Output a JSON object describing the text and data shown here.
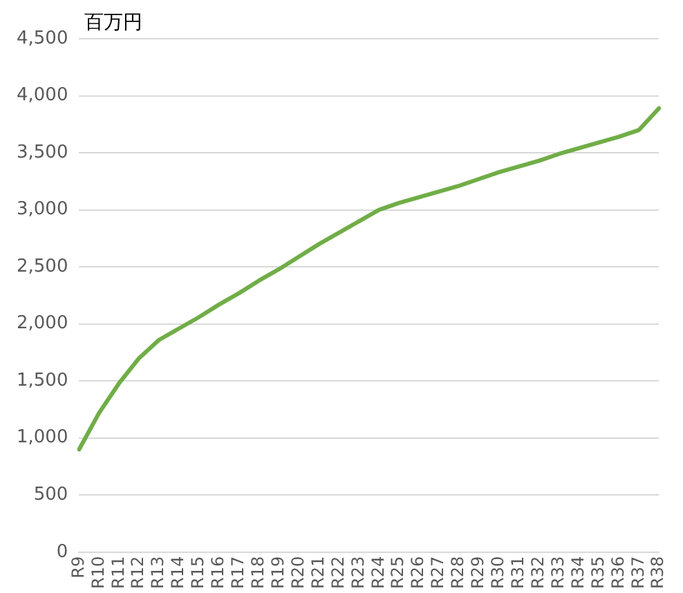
{
  "chart_data": {
    "type": "line",
    "ylabel": "百万円",
    "categories": [
      "R9",
      "R10",
      "R11",
      "R12",
      "R13",
      "R14",
      "R15",
      "R16",
      "R17",
      "R18",
      "R19",
      "R20",
      "R21",
      "R22",
      "R23",
      "R24",
      "R25",
      "R26",
      "R27",
      "R28",
      "R29",
      "R30",
      "R31",
      "R32",
      "R33",
      "R34",
      "R35",
      "R36",
      "R37",
      "R38"
    ],
    "series": [
      {
        "color": "#70ad47",
        "values": [
          900,
          1220,
          1480,
          1700,
          1860,
          1960,
          2060,
          2170,
          2270,
          2380,
          2480,
          2590,
          2700,
          2800,
          2900,
          3000,
          3060,
          3110,
          3160,
          3210,
          3270,
          3330,
          3380,
          3430,
          3490,
          3540,
          3590,
          3640,
          3700,
          3890
        ]
      }
    ],
    "ylim": [
      0,
      4500
    ],
    "yticks": [
      0,
      500,
      {
        "value": 1000,
        "label": "1,000"
      },
      {
        "value": 1500,
        "label": "1,500"
      },
      {
        "value": 2000,
        "label": "2,000"
      },
      {
        "value": 2500,
        "label": "2,500"
      },
      {
        "value": 3000,
        "label": "3,000"
      },
      {
        "value": 3500,
        "label": "3,500"
      },
      {
        "value": 4000,
        "label": "4,000"
      },
      {
        "value": 4500,
        "label": "4,500"
      }
    ],
    "grid": "y",
    "legend": false,
    "marker": "none",
    "line_style": "solid"
  }
}
